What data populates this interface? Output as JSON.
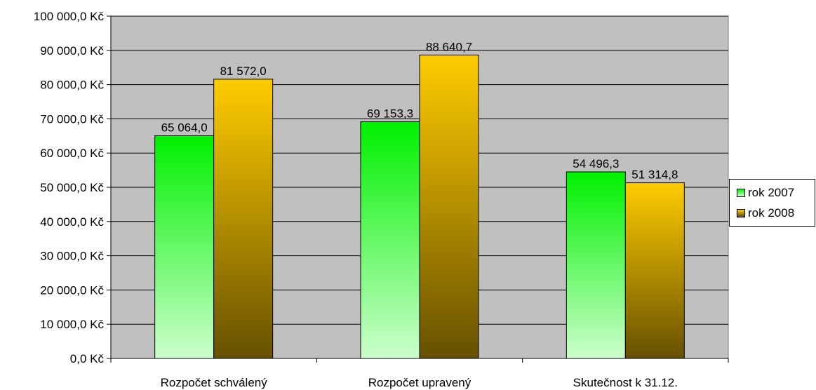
{
  "chart_data": {
    "type": "bar",
    "categories": [
      "Rozpočet schválený",
      "Rozpočet upravený",
      "Skutečnost k 31.12."
    ],
    "series": [
      {
        "name": "rok 2007",
        "values": [
          65064.0,
          69153.3,
          54496.3
        ],
        "labels": [
          "65 064,0",
          "69 153,3",
          "54 496,3"
        ],
        "color_top": "#00f000",
        "color_bottom": "#ccffcc"
      },
      {
        "name": "rok 2008",
        "values": [
          81572.0,
          88640.7,
          51314.8
        ],
        "labels": [
          "81 572,0",
          "88 640,7",
          "51 314,8"
        ],
        "color_top": "#ffcc00",
        "color_bottom": "#665000"
      }
    ],
    "ylim": [
      0,
      100000
    ],
    "y_ticks": [
      0,
      10000,
      20000,
      30000,
      40000,
      50000,
      60000,
      70000,
      80000,
      90000,
      100000
    ],
    "y_tick_labels": [
      "0,0 Kč",
      "10 000,0 Kč",
      "20 000,0 Kč",
      "30 000,0 Kč",
      "40 000,0 Kč",
      "50 000,0 Kč",
      "60 000,0 Kč",
      "70 000,0 Kč",
      "80 000,0 Kč",
      "90 000,0 Kč",
      "100 000,0 Kč"
    ],
    "plot_background": "#c0c0c0",
    "grid": true,
    "legend_position": "right"
  }
}
